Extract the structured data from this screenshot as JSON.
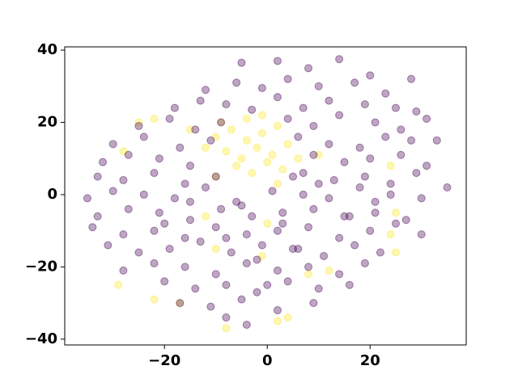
{
  "chart_data": {
    "type": "scatter",
    "xlim": [
      -39.4,
      38.7
    ],
    "ylim": [
      -41.6,
      40.9
    ],
    "xticks": [
      {
        "value": -20,
        "label": "−20"
      },
      0,
      20
    ],
    "yticks": [
      {
        "value": -40,
        "label": "−40"
      },
      {
        "value": -20,
        "label": "−20"
      },
      0,
      20,
      40
    ],
    "series": [
      {
        "color": "#fde725",
        "x": [
          -10,
          -7,
          -4,
          -1,
          2,
          -8,
          -5,
          -2,
          1,
          4,
          -6,
          -3,
          0,
          3,
          -9,
          -4,
          -1,
          2,
          -12,
          6,
          -25,
          -22,
          -15,
          -12,
          -29,
          10,
          12,
          24,
          25,
          -17,
          -8,
          -10,
          2,
          4,
          -1,
          8,
          24,
          25,
          -22,
          -28,
          -10,
          0
        ],
        "y": [
          16,
          18,
          15,
          17,
          19,
          12,
          10,
          13,
          11,
          14,
          8,
          6,
          9,
          7,
          20,
          21,
          22,
          3,
          13,
          10,
          20,
          21,
          18,
          -6,
          -25,
          11,
          -21,
          -11,
          -16,
          -30,
          -37,
          -15,
          -35,
          -34,
          -17,
          -22,
          8,
          -5,
          -29,
          12,
          5,
          -8
        ]
      },
      {
        "color": "#440154",
        "x": [
          -5,
          2,
          8,
          14,
          20,
          -12,
          -6,
          -1,
          4,
          10,
          17,
          23,
          28,
          -18,
          -13,
          -8,
          -3,
          2,
          7,
          12,
          19,
          25,
          29,
          -25,
          -19,
          -14,
          -9,
          4,
          9,
          14,
          21,
          26,
          31,
          -30,
          -24,
          -17,
          -11,
          6,
          12,
          18,
          23,
          28,
          33,
          -32,
          -27,
          -21,
          -15,
          9,
          15,
          20,
          26,
          31,
          -33,
          -28,
          -22,
          -16,
          -10,
          7,
          13,
          19,
          24,
          29,
          -35,
          -30,
          -24,
          -18,
          -12,
          -6,
          1,
          7,
          12,
          18,
          24,
          30,
          35,
          -33,
          -27,
          -21,
          -15,
          -9,
          -3,
          3,
          9,
          15,
          21,
          27,
          -34,
          -28,
          -22,
          -16,
          -10,
          -4,
          2,
          8,
          14,
          20,
          25,
          30,
          -31,
          -25,
          -19,
          -13,
          -7,
          -1,
          5,
          11,
          17,
          22,
          -28,
          -22,
          -16,
          -10,
          -4,
          2,
          8,
          14,
          19,
          -20,
          -14,
          -8,
          -2,
          4,
          10,
          16,
          -17,
          -11,
          -5,
          2,
          9,
          -8,
          -4,
          -5,
          3,
          -8,
          6,
          -2,
          10,
          -15,
          16,
          0,
          -20,
          21,
          5
        ],
        "y": [
          36.5,
          37,
          35,
          37.5,
          33,
          29,
          31,
          29.5,
          32,
          30,
          31,
          28,
          32,
          24,
          26,
          25,
          23.5,
          27,
          24,
          26,
          25,
          24,
          23,
          19,
          21,
          18,
          20,
          21,
          19,
          22,
          20,
          18,
          21,
          14,
          16,
          13,
          15,
          16,
          14,
          13,
          16,
          15,
          15,
          9,
          11,
          10,
          8,
          11,
          9,
          10,
          11,
          8,
          5,
          4,
          6,
          3,
          5,
          6,
          4,
          5,
          3,
          6,
          -1,
          1,
          0,
          -1,
          2,
          -2,
          1,
          0,
          -1,
          2,
          0,
          -1,
          2,
          -6,
          -4,
          -5,
          -7,
          -4,
          -6,
          -5,
          -4,
          -6,
          -5,
          -7,
          -9,
          -11,
          -10,
          -12,
          -9,
          -11,
          -10,
          -9,
          -12,
          -10,
          -8,
          -11,
          -14,
          -16,
          -15,
          -13,
          -16,
          -14,
          -15,
          -17,
          -14,
          -16,
          -21,
          -19,
          -20,
          -22,
          -19,
          -21,
          -20,
          -22,
          -19,
          -24,
          -26,
          -25,
          -27,
          -24,
          -26,
          -25,
          -30,
          -31,
          -29,
          -32,
          -30,
          -34,
          -36,
          -3,
          -8,
          -12,
          -15,
          -18,
          3,
          -2,
          -6,
          -25,
          -8,
          -2,
          5
        ]
      }
    ]
  }
}
